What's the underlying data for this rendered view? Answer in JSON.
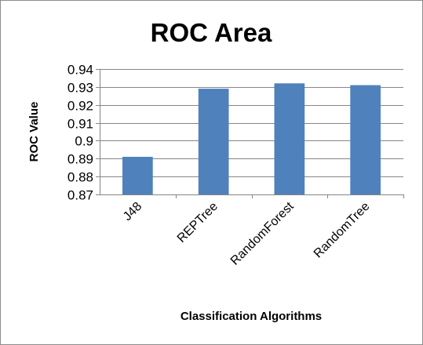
{
  "chart_data": {
    "type": "bar",
    "title": "ROC Area",
    "xlabel": "Classification Algorithms",
    "ylabel": "ROC Value",
    "categories": [
      "J48",
      "REPTree",
      "RandomForest",
      "RandomTree"
    ],
    "values": [
      0.891,
      0.929,
      0.932,
      0.931
    ],
    "ylim": [
      0.87,
      0.94
    ],
    "yticks": [
      "0.87",
      "0.88",
      "0.89",
      "0.9",
      "0.91",
      "0.92",
      "0.93",
      "0.94"
    ],
    "grid": true,
    "legend": "none",
    "bar_color": "#4f81bd",
    "grid_color": "#868686"
  }
}
